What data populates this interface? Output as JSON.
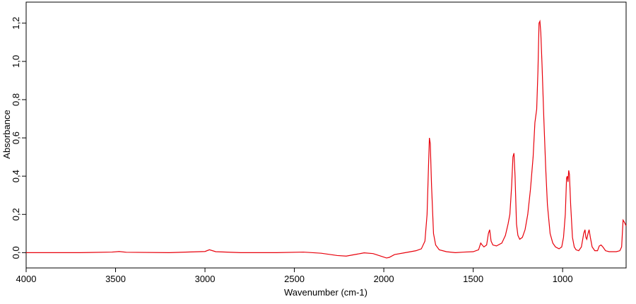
{
  "chart_data": {
    "type": "line",
    "x_label": "Wavenumber (cm-1)",
    "y_label": "Absorbance",
    "x": [
      4000,
      3700,
      3520,
      3480,
      3440,
      3200,
      3000,
      2975,
      2940,
      2800,
      2600,
      2450,
      2350,
      2260,
      2210,
      2150,
      2110,
      2060,
      2010,
      1985,
      1970,
      1940,
      1880,
      1820,
      1790,
      1770,
      1758,
      1750,
      1745,
      1740,
      1733,
      1722,
      1710,
      1690,
      1650,
      1600,
      1550,
      1500,
      1470,
      1458,
      1450,
      1440,
      1425,
      1415,
      1408,
      1400,
      1390,
      1370,
      1340,
      1320,
      1305,
      1295,
      1285,
      1278,
      1272,
      1266,
      1258,
      1250,
      1240,
      1225,
      1210,
      1195,
      1180,
      1165,
      1155,
      1145,
      1138,
      1132,
      1127,
      1122,
      1115,
      1105,
      1095,
      1085,
      1070,
      1055,
      1040,
      1020,
      1005,
      995,
      985,
      978,
      974,
      970,
      966,
      962,
      955,
      945,
      935,
      925,
      910,
      895,
      882,
      875,
      870,
      865,
      858,
      852,
      845,
      835,
      820,
      805,
      795,
      785,
      775,
      760,
      740,
      700,
      680,
      670,
      662,
      655,
      645
    ],
    "values": [
      0.0,
      0.0,
      0.003,
      0.006,
      0.002,
      0.0,
      0.006,
      0.015,
      0.005,
      0.0,
      0.0,
      0.003,
      -0.003,
      -0.015,
      -0.018,
      -0.008,
      -0.001,
      -0.005,
      -0.02,
      -0.028,
      -0.025,
      -0.01,
      0.0,
      0.01,
      0.02,
      0.06,
      0.2,
      0.45,
      0.6,
      0.57,
      0.35,
      0.1,
      0.04,
      0.015,
      0.005,
      0.0,
      0.003,
      0.005,
      0.015,
      0.05,
      0.04,
      0.03,
      0.04,
      0.1,
      0.12,
      0.06,
      0.04,
      0.035,
      0.05,
      0.09,
      0.15,
      0.2,
      0.35,
      0.5,
      0.52,
      0.4,
      0.15,
      0.09,
      0.07,
      0.08,
      0.12,
      0.2,
      0.33,
      0.5,
      0.68,
      0.75,
      0.95,
      1.2,
      1.21,
      1.15,
      0.98,
      0.7,
      0.45,
      0.25,
      0.1,
      0.05,
      0.03,
      0.02,
      0.03,
      0.08,
      0.2,
      0.39,
      0.4,
      0.37,
      0.43,
      0.41,
      0.25,
      0.08,
      0.03,
      0.015,
      0.01,
      0.03,
      0.1,
      0.12,
      0.08,
      0.07,
      0.1,
      0.12,
      0.08,
      0.03,
      0.01,
      0.01,
      0.035,
      0.04,
      0.03,
      0.01,
      0.005,
      0.005,
      0.01,
      0.03,
      0.17,
      0.16,
      0.14
    ],
    "color": "#e8000b",
    "xlim": [
      4000,
      645
    ],
    "xticks": [
      4000,
      3500,
      3000,
      2500,
      2000,
      1500,
      1000
    ],
    "ylim": [
      -0.08,
      1.31
    ],
    "yticks": [
      {
        "value": 0,
        "label": "0,0"
      },
      {
        "value": 0.2,
        "label": "0,2"
      },
      {
        "value": 0.4,
        "label": "0,4"
      },
      {
        "value": 0.6,
        "label": "0,6"
      },
      {
        "value": 0.8,
        "label": "0,8"
      },
      {
        "value": 1.0,
        "label": "1,0"
      },
      {
        "value": 1.2,
        "label": "1,2"
      }
    ],
    "grid": false
  }
}
